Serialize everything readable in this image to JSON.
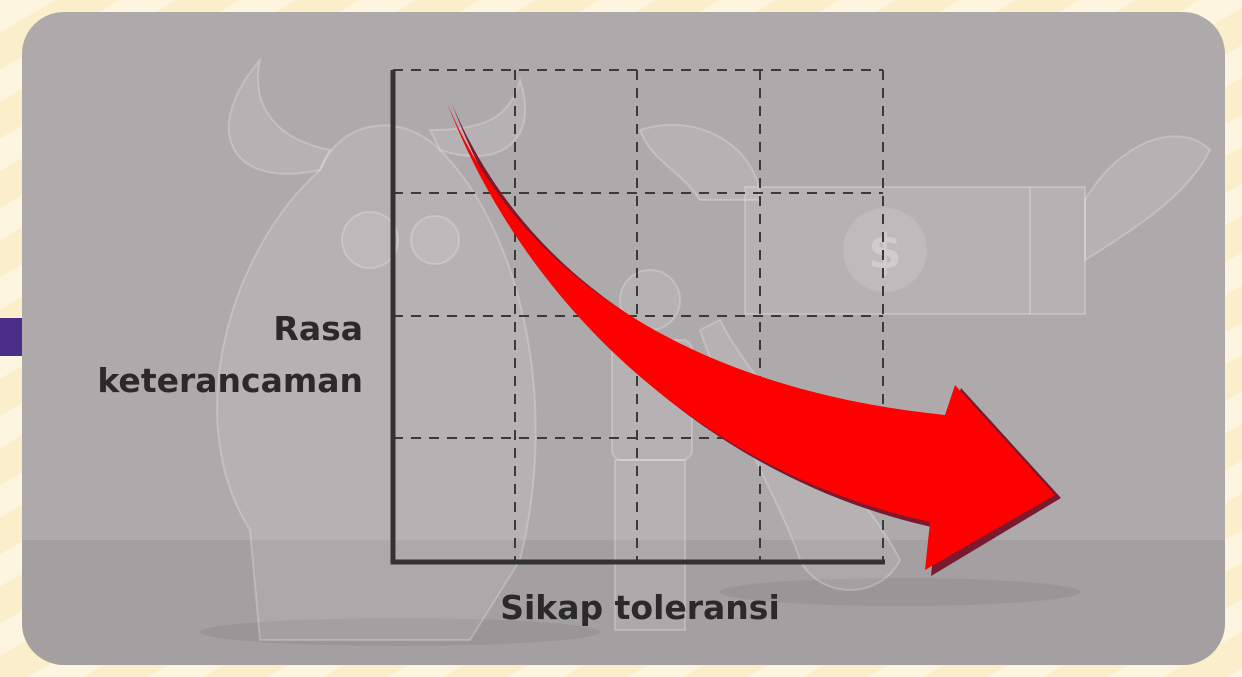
{
  "y_axis_label": {
    "lines": [
      "Rasa",
      "keterancaman"
    ]
  },
  "x_axis_label": "Sikap toleransi",
  "bill_symbol": "$"
}
